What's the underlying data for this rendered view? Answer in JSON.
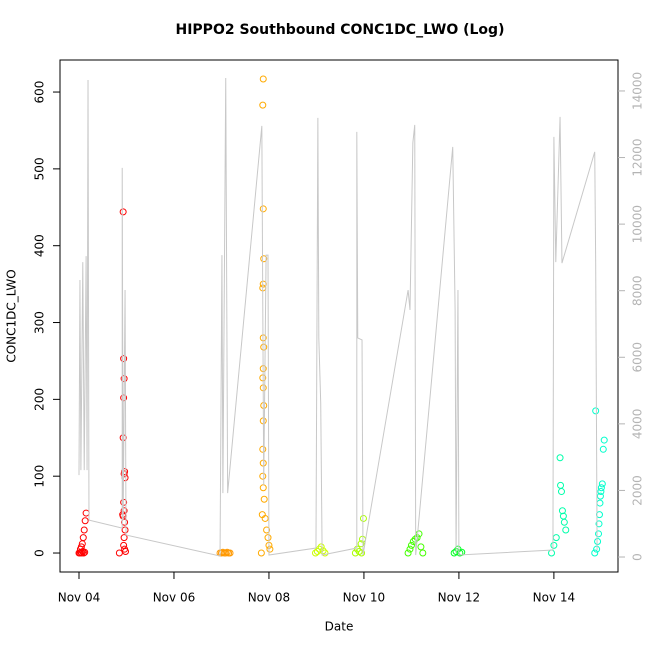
{
  "chart_data": {
    "type": "scatter",
    "title": "HIPPO2 Southbound CONC1DC_LWO (Log)",
    "x_label": "Date",
    "y_label": "CONC1DC_LWO",
    "xlim": [
      3.6,
      15.35
    ],
    "xticks": [
      {
        "value": 4,
        "label": "Nov 04"
      },
      {
        "value": 6,
        "label": "Nov 06"
      },
      {
        "value": 8,
        "label": "Nov 08"
      },
      {
        "value": 10,
        "label": "Nov 10"
      },
      {
        "value": 12,
        "label": "Nov 12"
      },
      {
        "value": 14,
        "label": "Nov 14"
      }
    ],
    "ylim": [
      -24.7,
      641.7
    ],
    "yticks": [
      0,
      100,
      200,
      300,
      400,
      500,
      600
    ],
    "y2lim": [
      -450,
      14930
    ],
    "y2ticks": [
      0,
      2000,
      4000,
      6000,
      8000,
      10000,
      12000,
      14000
    ],
    "y2_color": "#b4b4b4",
    "series": [
      {
        "color": "#ff0000",
        "x": [
          4.0,
          4.02,
          4.04,
          4.06,
          4.08,
          4.1,
          4.12,
          4.03,
          4.05,
          4.07,
          4.09,
          4.11,
          4.13,
          4.15,
          4.93,
          4.94,
          4.95,
          4.94,
          4.93,
          4.96,
          4.95,
          4.97,
          4.94,
          4.95,
          4.92,
          4.93,
          4.96,
          4.97,
          4.95,
          4.94,
          4.96,
          4.98,
          4.85
        ],
        "values": [
          0,
          0,
          1,
          0,
          2,
          0,
          1,
          5,
          8,
          12,
          20,
          30,
          42,
          52,
          444,
          253,
          227,
          202,
          150,
          106,
          103,
          98,
          66,
          55,
          50,
          48,
          40,
          30,
          20,
          10,
          5,
          2,
          0
        ]
      },
      {
        "color": "#ff9900",
        "x": [
          6.97,
          7.0,
          7.03,
          7.06,
          7.09,
          7.12,
          7.15,
          7.18
        ],
        "values": [
          0,
          0,
          1,
          0,
          0,
          1,
          0,
          0
        ]
      },
      {
        "color": "#ffaa00",
        "x": [
          7.88,
          7.87,
          7.88,
          7.89,
          7.88,
          7.87,
          7.88,
          7.89,
          7.88,
          7.87,
          7.88,
          7.89,
          7.88,
          7.87,
          7.88,
          7.87,
          7.88,
          7.9,
          7.86,
          7.92,
          7.95,
          7.98,
          8.0,
          8.02,
          7.84
        ],
        "values": [
          617,
          583,
          448,
          383,
          350,
          345,
          280,
          268,
          240,
          228,
          215,
          192,
          172,
          135,
          117,
          100,
          85,
          70,
          50,
          45,
          30,
          20,
          10,
          5,
          0
        ]
      },
      {
        "color": "#ccff00",
        "x": [
          8.98,
          9.02,
          9.06,
          9.1,
          9.14,
          9.18
        ],
        "values": [
          0,
          2,
          5,
          8,
          3,
          0
        ]
      },
      {
        "color": "#aaff00",
        "x": [
          9.82,
          9.86,
          9.9,
          9.94,
          9.97,
          9.99,
          9.95
        ],
        "values": [
          0,
          5,
          2,
          12,
          18,
          45,
          0
        ]
      },
      {
        "color": "#44ff00",
        "x": [
          10.93,
          10.97,
          11.0,
          11.04,
          11.08,
          11.12,
          11.16,
          11.2,
          11.24
        ],
        "values": [
          0,
          5,
          10,
          15,
          18,
          20,
          25,
          8,
          0
        ]
      },
      {
        "color": "#00ff22",
        "x": [
          11.9,
          11.94,
          11.98,
          12.02,
          12.06
        ],
        "values": [
          0,
          2,
          5,
          0,
          1
        ]
      },
      {
        "color": "#00ffaa",
        "x": [
          13.95,
          14.0,
          14.05,
          14.13,
          14.14,
          14.16,
          14.18,
          14.2,
          14.22,
          14.25
        ],
        "values": [
          0,
          10,
          20,
          124,
          88,
          80,
          55,
          48,
          40,
          30
        ]
      },
      {
        "color": "#00ffcc",
        "x": [
          14.86,
          14.9,
          14.92,
          14.94,
          14.95,
          14.96,
          14.97,
          14.98,
          14.99,
          15.0,
          15.02,
          15.04,
          15.06,
          14.88
        ],
        "values": [
          0,
          5,
          15,
          25,
          38,
          50,
          65,
          74,
          80,
          85,
          90,
          135,
          147,
          185
        ]
      },
      {
        "type": "line",
        "axis": "y2",
        "color": "#c8c8c8",
        "x": [
          4.0,
          4.02,
          4.04,
          4.08,
          4.11,
          4.15,
          4.17,
          4.19,
          4.21,
          4.91,
          4.91,
          4.93,
          4.97,
          4.99,
          6.97,
          7.01,
          7.03,
          7.09,
          7.13,
          7.85,
          7.89,
          7.94,
          7.98,
          8.0,
          8.99,
          9.03,
          9.05,
          9.09,
          9.12,
          9.85,
          9.85,
          9.87,
          9.96,
          9.98,
          10.93,
          10.97,
          11.03,
          11.07,
          11.09,
          11.87,
          11.92,
          11.94,
          11.98,
          12.0,
          13.98,
          14.0,
          14.04,
          14.13,
          14.17,
          14.86,
          14.88,
          14.91
        ],
        "values": [
          2460,
          8320,
          2610,
          8860,
          2610,
          9040,
          2610,
          14330,
          1110,
          870,
          11690,
          1110,
          8020,
          660,
          30,
          9070,
          1920,
          14390,
          1920,
          12950,
          2160,
          9070,
          9070,
          60,
          270,
          13190,
          6580,
          4630,
          60,
          270,
          12770,
          6580,
          6520,
          60,
          8020,
          7420,
          12440,
          12980,
          60,
          12320,
          7420,
          120,
          8020,
          60,
          210,
          12620,
          8860,
          13220,
          8830,
          12170,
          8830,
          210
        ]
      }
    ]
  }
}
